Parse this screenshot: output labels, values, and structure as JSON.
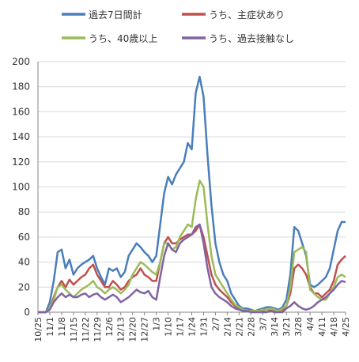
{
  "chart_data": {
    "type": "line",
    "categories": [
      "10/25",
      null,
      null,
      "11/1",
      null,
      null,
      "11/8",
      null,
      null,
      "11/15",
      null,
      null,
      "11/22",
      null,
      null,
      "11/29",
      null,
      null,
      "12/6",
      null,
      null,
      "12/13",
      null,
      null,
      "12/20",
      null,
      null,
      "12/27",
      null,
      null,
      "1/3",
      null,
      null,
      "1/10",
      null,
      null,
      "1/17",
      null,
      null,
      "1/24",
      null,
      null,
      "1/31",
      null,
      null,
      "2/7",
      null,
      null,
      "2/14",
      null,
      null,
      "2/21",
      null,
      null,
      "2/28",
      null,
      null,
      "3/7",
      null,
      null,
      "3/14",
      null,
      null,
      "3/21",
      null,
      null,
      "3/28",
      null,
      null,
      "4/4",
      null,
      null,
      "4/11",
      null,
      null,
      "4/18",
      null,
      null,
      "4/25"
    ],
    "series": [
      {
        "name": "過去7日間計",
        "color": "#4a7ebb",
        "values": [
          0,
          0,
          0,
          8,
          25,
          48,
          50,
          35,
          42,
          30,
          35,
          38,
          40,
          42,
          45,
          35,
          28,
          22,
          35,
          33,
          35,
          28,
          32,
          45,
          50,
          55,
          52,
          48,
          45,
          40,
          45,
          70,
          95,
          108,
          102,
          110,
          115,
          120,
          135,
          130,
          175,
          188,
          172,
          125,
          85,
          55,
          40,
          30,
          25,
          15,
          10,
          5,
          3,
          3,
          2,
          1,
          2,
          3,
          4,
          4,
          3,
          2,
          4,
          10,
          30,
          68,
          65,
          55,
          45,
          22,
          20,
          22,
          25,
          28,
          35,
          50,
          65,
          72,
          72
        ]
      },
      {
        "name": "うち、主症状あり",
        "color": "#c0504d",
        "values": [
          0,
          0,
          0,
          3,
          12,
          20,
          25,
          20,
          26,
          22,
          25,
          28,
          30,
          35,
          38,
          30,
          25,
          20,
          20,
          25,
          22,
          18,
          20,
          25,
          28,
          30,
          35,
          30,
          28,
          25,
          25,
          40,
          55,
          60,
          55,
          55,
          58,
          60,
          62,
          62,
          65,
          70,
          60,
          45,
          30,
          22,
          18,
          15,
          12,
          8,
          5,
          3,
          2,
          1,
          1,
          1,
          1,
          1,
          2,
          2,
          1,
          1,
          2,
          5,
          15,
          35,
          38,
          35,
          30,
          20,
          15,
          15,
          12,
          15,
          18,
          25,
          38,
          42,
          45
        ]
      },
      {
        "name": "うち、40歳以上",
        "color": "#9bbb59",
        "values": [
          0,
          0,
          0,
          3,
          10,
          20,
          22,
          18,
          15,
          12,
          15,
          18,
          20,
          22,
          25,
          20,
          18,
          15,
          18,
          20,
          18,
          15,
          18,
          22,
          30,
          35,
          40,
          38,
          35,
          32,
          30,
          40,
          55,
          55,
          50,
          52,
          60,
          65,
          70,
          68,
          90,
          105,
          100,
          70,
          45,
          30,
          25,
          20,
          15,
          10,
          6,
          4,
          2,
          1,
          1,
          1,
          1,
          2,
          2,
          3,
          2,
          1,
          3,
          5,
          20,
          48,
          50,
          52,
          48,
          18,
          15,
          12,
          10,
          10,
          15,
          20,
          28,
          30,
          28
        ]
      },
      {
        "name": "うち、過去接触なし",
        "color": "#8064a2",
        "values": [
          0,
          0,
          0,
          2,
          8,
          12,
          15,
          12,
          14,
          12,
          12,
          14,
          15,
          12,
          14,
          15,
          12,
          10,
          12,
          14,
          12,
          8,
          10,
          12,
          15,
          18,
          16,
          15,
          17,
          12,
          10,
          28,
          45,
          55,
          50,
          48,
          55,
          58,
          60,
          62,
          68,
          70,
          55,
          35,
          20,
          15,
          12,
          10,
          8,
          5,
          3,
          2,
          1,
          1,
          0,
          0,
          0,
          0,
          0,
          1,
          0,
          0,
          0,
          3,
          5,
          8,
          5,
          3,
          2,
          3,
          5,
          8,
          10,
          12,
          15,
          18,
          22,
          25,
          24
        ]
      }
    ],
    "ylim": [
      0,
      200
    ],
    "yticks": [
      0,
      20,
      40,
      60,
      80,
      100,
      120,
      140,
      160,
      180,
      200
    ],
    "grid": true
  }
}
